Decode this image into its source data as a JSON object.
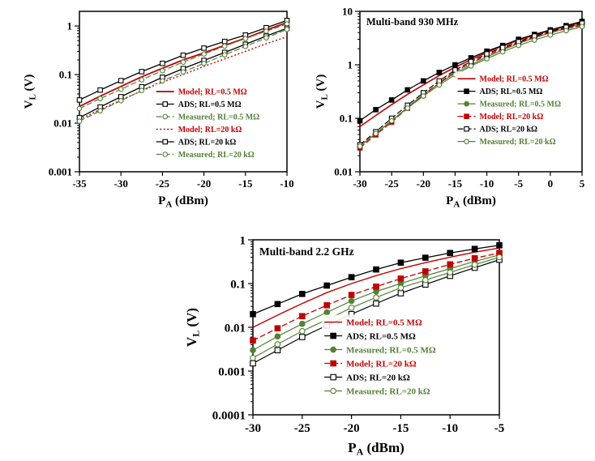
{
  "figure": {
    "background": "#ffffff"
  },
  "colors": {
    "red": "#c00000",
    "black": "#000000",
    "green": "#538135"
  },
  "chart_data": [
    {
      "id": "multiband-low",
      "type": "line",
      "title": "",
      "xlabel": {
        "pre": "P",
        "sub": "A",
        "post": " (dBm)"
      },
      "ylabel": {
        "pre": "V",
        "sub": "L",
        "post": " (V)"
      },
      "xlim": [
        -35,
        -10
      ],
      "xticks": [
        -35,
        -30,
        -25,
        -20,
        -15,
        -10
      ],
      "ylim": [
        0.001,
        2
      ],
      "yticks": [
        {
          "v": 0.001,
          "label": "0.001"
        },
        {
          "v": 0.01,
          "label": "0.01"
        },
        {
          "v": 0.1,
          "label": "0.1"
        },
        {
          "v": 1,
          "label": "1"
        }
      ],
      "grid": false,
      "legend_position": "inside-lower-right",
      "x": [
        -35,
        -32.5,
        -30,
        -27.5,
        -25,
        -22.5,
        -20,
        -17.5,
        -15,
        -12.5,
        -10
      ],
      "series": [
        {
          "name": "Model; RL=0.5 MΩ",
          "color": "red",
          "line": "solid",
          "marker": "none",
          "lw": 1.8,
          "values": [
            0.022,
            0.036,
            0.057,
            0.09,
            0.135,
            0.2,
            0.28,
            0.4,
            0.56,
            0.82,
            1.18
          ]
        },
        {
          "name": "ADS; RL=0.5 MΩ",
          "color": "black",
          "line": "solid",
          "marker": "square-open",
          "lw": 1.3,
          "values": [
            0.03,
            0.048,
            0.075,
            0.115,
            0.17,
            0.25,
            0.35,
            0.48,
            0.65,
            0.92,
            1.3
          ]
        },
        {
          "name": "Measured; RL=0.5 MΩ",
          "color": "green",
          "line": "dash",
          "marker": "circle-open",
          "lw": 1.2,
          "values": [
            0.02,
            0.032,
            0.05,
            0.078,
            0.12,
            0.18,
            0.265,
            0.385,
            0.55,
            0.78,
            1.1
          ]
        },
        {
          "name": "Model; RL=20 kΩ",
          "color": "red",
          "line": "dot",
          "marker": "none",
          "lw": 1.4,
          "values": [
            0.012,
            0.019,
            0.03,
            0.046,
            0.07,
            0.1,
            0.148,
            0.21,
            0.3,
            0.43,
            0.6
          ]
        },
        {
          "name": "ADS; RL=20 kΩ",
          "color": "black",
          "line": "solid",
          "marker": "square-open",
          "lw": 1.3,
          "values": [
            0.013,
            0.0215,
            0.035,
            0.056,
            0.088,
            0.133,
            0.195,
            0.285,
            0.42,
            0.62,
            0.9
          ]
        },
        {
          "name": "Measured; RL=20 kΩ",
          "color": "green",
          "line": "dash",
          "marker": "circle-open",
          "lw": 1.2,
          "values": [
            0.011,
            0.018,
            0.029,
            0.047,
            0.074,
            0.113,
            0.17,
            0.255,
            0.38,
            0.57,
            0.85
          ]
        }
      ]
    },
    {
      "id": "multiband-930mhz",
      "type": "line",
      "title": "Multi-band 930 MHz",
      "xlabel": {
        "pre": "P",
        "sub": "A",
        "post": " (dBm)"
      },
      "ylabel": {
        "pre": "V",
        "sub": "L",
        "post": " (V)"
      },
      "xlim": [
        -30,
        5
      ],
      "xticks": [
        -30,
        -25,
        -20,
        -15,
        -10,
        -5,
        0,
        5
      ],
      "ylim": [
        0.01,
        10
      ],
      "yticks": [
        {
          "v": 0.01,
          "label": "0.01"
        },
        {
          "v": 0.1,
          "label": "0.1"
        },
        {
          "v": 1,
          "label": "1"
        },
        {
          "v": 10,
          "label": "10"
        }
      ],
      "grid": false,
      "legend_position": "inside-middle-right",
      "x": [
        -30,
        -27.5,
        -25,
        -22.5,
        -20,
        -17.5,
        -15,
        -12.5,
        -10,
        -7.5,
        -5,
        -2.5,
        0,
        2.5,
        5
      ],
      "series": [
        {
          "name": "Model; RL=0.5 MΩ",
          "color": "red",
          "line": "solid",
          "marker": "none",
          "lw": 1.6,
          "values": [
            0.07,
            0.113,
            0.18,
            0.28,
            0.42,
            0.63,
            0.9,
            1.25,
            1.7,
            2.25,
            2.9,
            3.6,
            4.4,
            5.25,
            6.2
          ]
        },
        {
          "name": "ADS; RL=0.5 MΩ",
          "color": "black",
          "line": "solid",
          "marker": "square-filled",
          "lw": 1.3,
          "values": [
            0.09,
            0.145,
            0.22,
            0.34,
            0.5,
            0.72,
            1.0,
            1.35,
            1.8,
            2.3,
            3.0,
            3.7,
            4.5,
            5.4,
            6.5
          ]
        },
        {
          "name": "Measured; RL=0.5 MΩ",
          "color": "green",
          "line": "solid",
          "marker": "circle-filled",
          "lw": 1.2,
          "values": [
            0.03,
            0.052,
            0.09,
            0.16,
            0.28,
            0.45,
            0.7,
            1.0,
            1.4,
            1.9,
            2.5,
            3.2,
            4.0,
            4.85,
            5.8
          ]
        },
        {
          "name": "Model; RL=20 kΩ",
          "color": "red",
          "line": "dash",
          "marker": "square-filled",
          "lw": 1.3,
          "values": [
            0.028,
            0.049,
            0.085,
            0.155,
            0.27,
            0.46,
            0.75,
            1.08,
            1.5,
            2.0,
            2.6,
            3.3,
            4.0,
            4.75,
            5.5
          ]
        },
        {
          "name": "ADS; RL=20 kΩ",
          "color": "black",
          "line": "dash",
          "marker": "square-open",
          "lw": 1.2,
          "values": [
            0.032,
            0.056,
            0.1,
            0.175,
            0.3,
            0.5,
            0.8,
            1.15,
            1.6,
            2.1,
            2.7,
            3.45,
            4.2,
            5.05,
            6.0
          ]
        },
        {
          "name": "Measured; RL=20 kΩ",
          "color": "green",
          "line": "solid",
          "marker": "circle-open",
          "lw": 1.2,
          "values": [
            0.03,
            0.052,
            0.09,
            0.155,
            0.26,
            0.42,
            0.65,
            0.95,
            1.3,
            1.75,
            2.3,
            2.9,
            3.6,
            4.35,
            5.2
          ]
        }
      ]
    },
    {
      "id": "multiband-2-2ghz",
      "type": "line",
      "title": "Multi-band 2.2 GHz",
      "xlabel": {
        "pre": "P",
        "sub": "A",
        "post": " (dBm)"
      },
      "ylabel": {
        "pre": "V",
        "sub": "L",
        "post": " (V)"
      },
      "xlim": [
        -30,
        -5
      ],
      "xticks": [
        -30,
        -25,
        -20,
        -15,
        -10,
        -5
      ],
      "ylim": [
        0.0001,
        1
      ],
      "yticks": [
        {
          "v": 0.0001,
          "label": "0.0001"
        },
        {
          "v": 0.001,
          "label": "0.001"
        },
        {
          "v": 0.01,
          "label": "0.01"
        },
        {
          "v": 0.1,
          "label": "0.1"
        },
        {
          "v": 1,
          "label": "1"
        }
      ],
      "grid": false,
      "legend_position": "inside-lower-right",
      "x": [
        -30,
        -27.5,
        -25,
        -22.5,
        -20,
        -17.5,
        -15,
        -12.5,
        -10,
        -7.5,
        -5
      ],
      "series": [
        {
          "name": "Model; RL=0.5 MΩ",
          "color": "red",
          "line": "solid",
          "marker": "none",
          "lw": 1.4,
          "values": [
            0.01,
            0.019,
            0.035,
            0.062,
            0.1,
            0.152,
            0.22,
            0.3,
            0.4,
            0.52,
            0.65
          ]
        },
        {
          "name": "ADS; RL=0.5 MΩ",
          "color": "black",
          "line": "solid",
          "marker": "square-filled",
          "lw": 1.3,
          "values": [
            0.02,
            0.034,
            0.058,
            0.09,
            0.14,
            0.21,
            0.3,
            0.39,
            0.5,
            0.62,
            0.75
          ]
        },
        {
          "name": "Measured; RL=0.5 MΩ",
          "color": "green",
          "line": "solid",
          "marker": "circle-filled",
          "lw": 1.2,
          "values": [
            0.003,
            0.0062,
            0.012,
            0.022,
            0.04,
            0.066,
            0.1,
            0.15,
            0.22,
            0.32,
            0.45
          ]
        },
        {
          "name": "Model; RL=20 kΩ",
          "color": "red",
          "line": "dash",
          "marker": "square-filled",
          "lw": 1.3,
          "values": [
            0.005,
            0.0095,
            0.018,
            0.032,
            0.055,
            0.085,
            0.13,
            0.19,
            0.275,
            0.38,
            0.5
          ]
        },
        {
          "name": "ADS; RL=20 kΩ",
          "color": "black",
          "line": "solid",
          "marker": "square-open",
          "lw": 1.2,
          "values": [
            0.0015,
            0.003,
            0.006,
            0.011,
            0.02,
            0.035,
            0.06,
            0.095,
            0.15,
            0.23,
            0.35
          ]
        },
        {
          "name": "Measured; RL=20 kΩ",
          "color": "green",
          "line": "solid",
          "marker": "circle-open",
          "lw": 1.2,
          "values": [
            0.002,
            0.0041,
            0.0082,
            0.015,
            0.028,
            0.048,
            0.08,
            0.12,
            0.18,
            0.27,
            0.4
          ]
        }
      ]
    }
  ]
}
